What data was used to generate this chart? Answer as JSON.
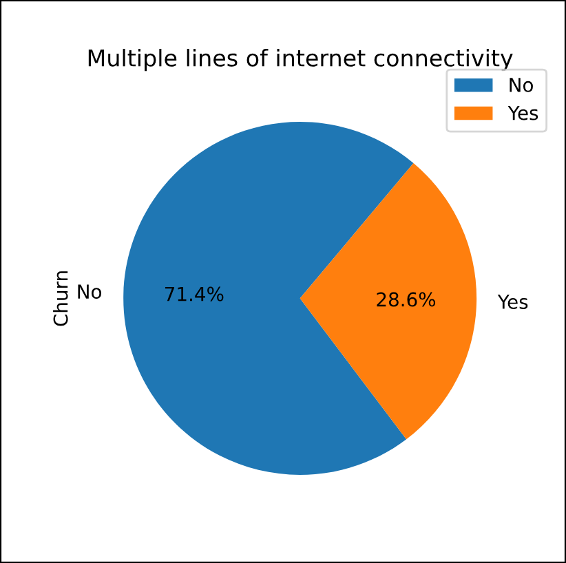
{
  "chart_data": {
    "type": "pie",
    "title": "Multiple lines of internet connectivity",
    "ylabel": "Churn",
    "categories": [
      "No",
      "Yes"
    ],
    "values": [
      71.4,
      28.6
    ],
    "colors": [
      "#1f77b4",
      "#ff7f0e"
    ],
    "value_labels": [
      "71.4%",
      "28.6%"
    ],
    "legend": "top right"
  }
}
